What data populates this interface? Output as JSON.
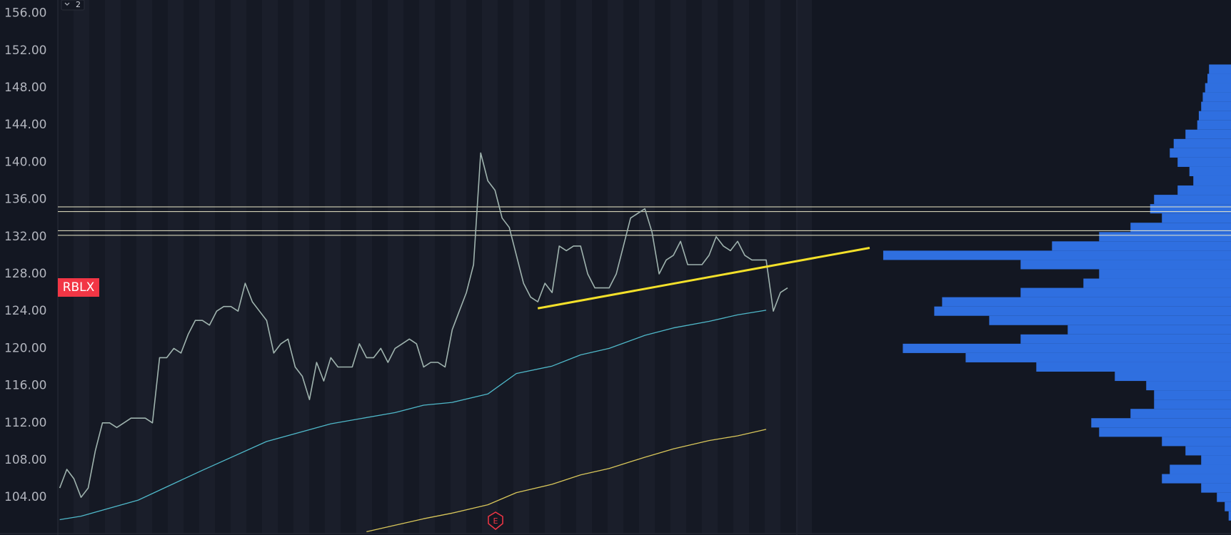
{
  "toolbar": {
    "badge": "2"
  },
  "chart_data": {
    "type": "line",
    "symbol": "RBLX",
    "marker": "E",
    "ylim": [
      99.95,
      157.43
    ],
    "yticks": [
      {
        "value": 104,
        "label": "104.00"
      },
      {
        "value": 108,
        "label": "108.00"
      },
      {
        "value": 112,
        "label": "112.00"
      },
      {
        "value": 116,
        "label": "116.00"
      },
      {
        "value": 120,
        "label": "120.00"
      },
      {
        "value": 124,
        "label": "124.00"
      },
      {
        "value": 128,
        "label": "128.00"
      },
      {
        "value": 132,
        "label": "132.00"
      },
      {
        "value": 136,
        "label": "136.00"
      },
      {
        "value": 140,
        "label": "140.00"
      },
      {
        "value": 144,
        "label": "144.00"
      },
      {
        "value": 148,
        "label": "148.00"
      },
      {
        "value": 152,
        "label": "152.00"
      },
      {
        "value": 156,
        "label": "156.00"
      }
    ],
    "series": [
      {
        "color": "#9fb3ae",
        "values": [
          105,
          107,
          106,
          104,
          105,
          109,
          112,
          112,
          111.5,
          112,
          112.5,
          112.5,
          112.5,
          112,
          119,
          119,
          120,
          119.5,
          121.5,
          123,
          123,
          122.5,
          124,
          124.5,
          124.5,
          124,
          127,
          125,
          124,
          123,
          119.5,
          120.5,
          121,
          118,
          117,
          114.5,
          118.5,
          116.5,
          119,
          118,
          118,
          118,
          120.5,
          119,
          119,
          120,
          118.5,
          120,
          120.5,
          121,
          120.5,
          118,
          118.5,
          118.5,
          118,
          122,
          124,
          126,
          129,
          141,
          138,
          137,
          134,
          133,
          130,
          127,
          125.5,
          125,
          127,
          126,
          131,
          130.5,
          131,
          131,
          128,
          126.5,
          126.5,
          126.5,
          128,
          131,
          134,
          134.5,
          135,
          132.5,
          128,
          129.5,
          130,
          131.5,
          129,
          129,
          129,
          130,
          132,
          131,
          130.5,
          131.5,
          130,
          129.5,
          129.5,
          129.5,
          124,
          126,
          126.5
        ]
      },
      {
        "color": "#4fb8c9",
        "x": [
          0,
          3,
          11,
          20,
          29,
          38,
          47,
          51,
          55,
          60,
          64,
          69,
          73,
          77,
          82,
          86,
          91,
          95,
          99
        ],
        "values": [
          101.6,
          101.97,
          103.7,
          106.9,
          110,
          111.9,
          113.1,
          113.9,
          114.2,
          115.1,
          117.3,
          118.1,
          119.3,
          120,
          121.4,
          122.2,
          122.9,
          123.6,
          124.1
        ]
      },
      {
        "color": "#d8c65a",
        "x": [
          43,
          51,
          55,
          60,
          64,
          69,
          73,
          77,
          82,
          86,
          91,
          95,
          99
        ],
        "values": [
          100.3,
          101.7,
          102.3,
          103.2,
          104.5,
          105.4,
          106.4,
          107.1,
          108.3,
          109.2,
          110.1,
          110.6,
          111.3
        ]
      }
    ],
    "levels": [
      135.2,
      134.7,
      132.65,
      132.15
    ],
    "level_color": "#ece9c8",
    "trendline": {
      "color": "#f3e02a",
      "x": [
        67,
        113.5
      ],
      "values": [
        124.3,
        130.8
      ]
    },
    "volume_profile": {
      "color": "#2f6fe0",
      "prices": [
        150,
        149,
        148,
        147,
        146,
        145,
        144,
        143,
        142,
        141,
        140,
        139,
        138,
        137,
        136,
        135,
        134,
        133,
        132,
        131,
        130,
        129,
        128,
        127,
        126,
        125,
        124,
        123,
        122,
        121,
        120,
        119,
        118,
        117,
        116,
        115,
        114,
        113,
        112,
        111,
        110,
        109,
        108,
        107,
        106,
        105,
        104,
        103,
        102
      ],
      "values": [
        28,
        30,
        33,
        36,
        38,
        41,
        43,
        58,
        73,
        78,
        68,
        53,
        48,
        68,
        98,
        103,
        88,
        128,
        168,
        228,
        443,
        268,
        168,
        188,
        268,
        368,
        378,
        308,
        208,
        268,
        418,
        338,
        248,
        148,
        108,
        98,
        98,
        128,
        178,
        168,
        88,
        58,
        38,
        78,
        88,
        38,
        18,
        8,
        3
      ]
    }
  }
}
